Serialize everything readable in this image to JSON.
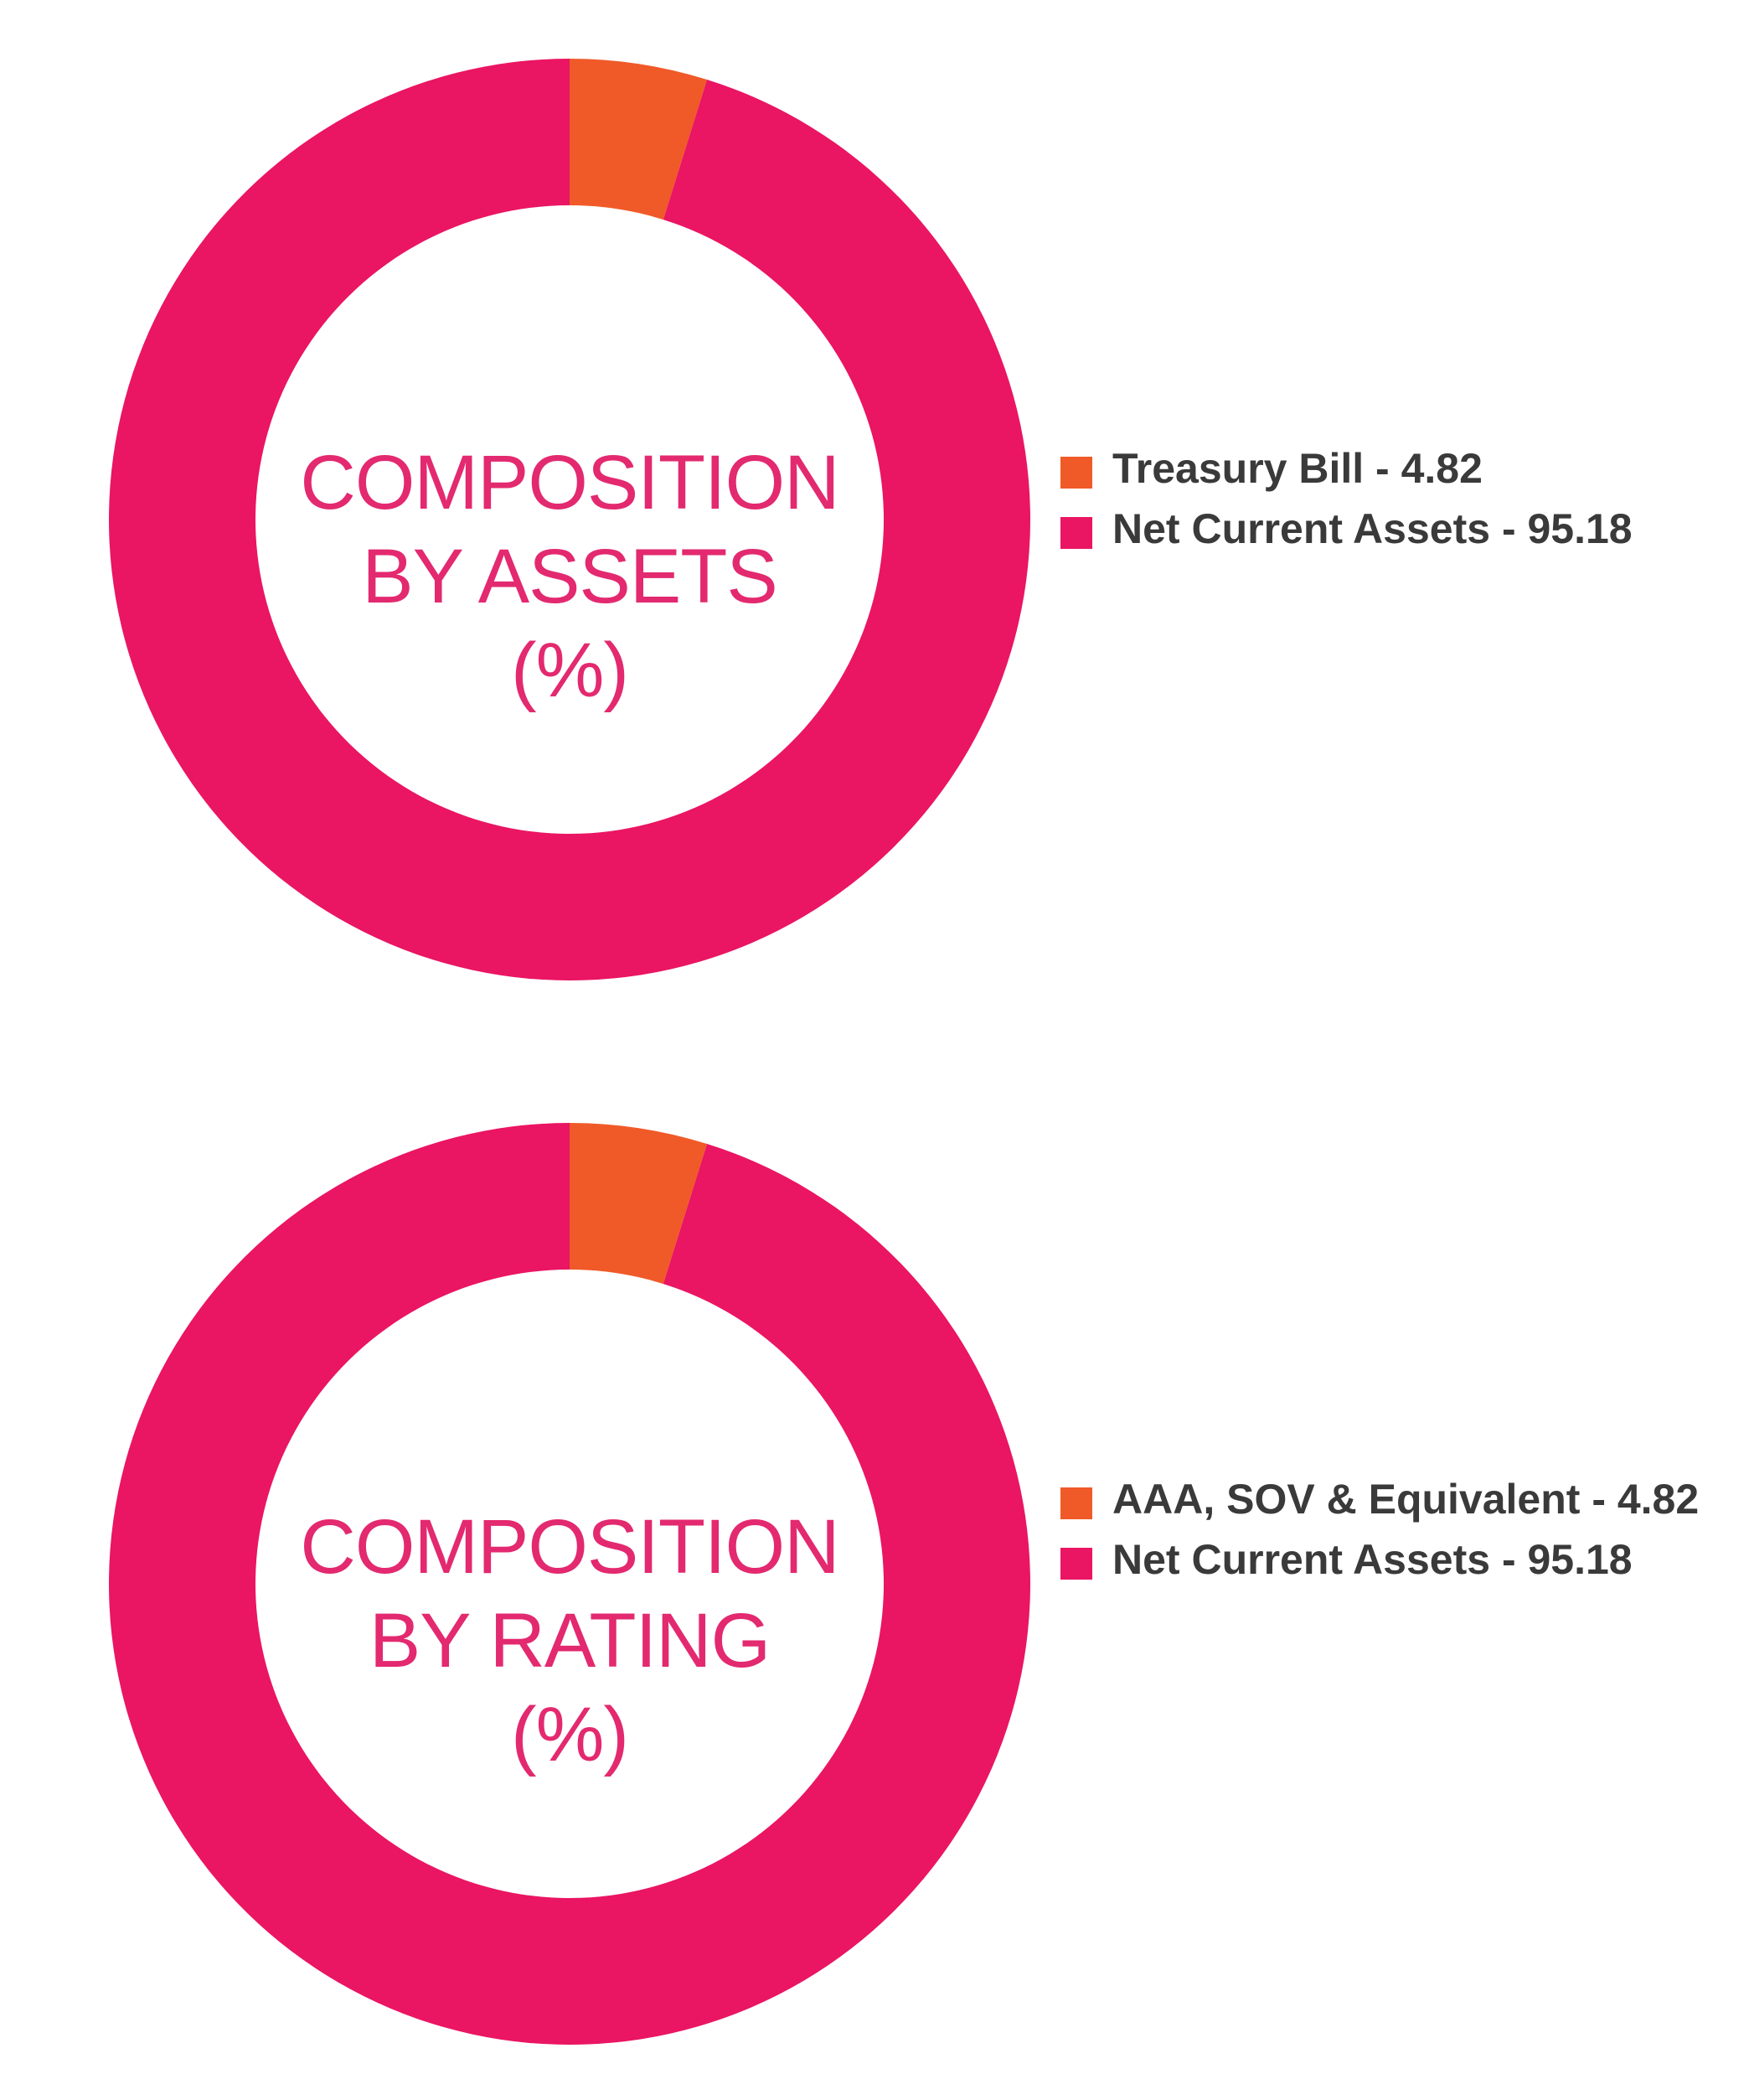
{
  "colors": {
    "orange": "#f05a28",
    "pink": "#ea1563",
    "title": "#e3296f",
    "legend_text": "#3a3a3a"
  },
  "charts": [
    {
      "title_lines": [
        "COMPOSITION",
        "BY ASSETS",
        "(%)"
      ],
      "legend": [
        {
          "label": "Treasury Bill - 4.82",
          "color": "#f05a28"
        },
        {
          "label": "Net Current Assets - 95.18",
          "color": "#ea1563"
        }
      ]
    },
    {
      "title_lines": [
        "COMPOSITION",
        "BY RATING",
        "(%)"
      ],
      "legend": [
        {
          "label": "AAA, SOV & Equivalent - 4.82",
          "color": "#f05a28"
        },
        {
          "label": "Net Current Assets - 95.18",
          "color": "#ea1563"
        }
      ]
    }
  ],
  "chart_data": [
    {
      "type": "pie",
      "title": "COMPOSITION BY ASSETS (%)",
      "categories": [
        "Treasury Bill",
        "Net Current Assets"
      ],
      "values": [
        4.82,
        95.18
      ],
      "colors": [
        "#f05a28",
        "#ea1563"
      ],
      "legend_position": "right"
    },
    {
      "type": "pie",
      "title": "COMPOSITION BY RATING (%)",
      "categories": [
        "AAA, SOV & Equivalent",
        "Net Current Assets"
      ],
      "values": [
        4.82,
        95.18
      ],
      "colors": [
        "#f05a28",
        "#ea1563"
      ],
      "legend_position": "right"
    }
  ]
}
